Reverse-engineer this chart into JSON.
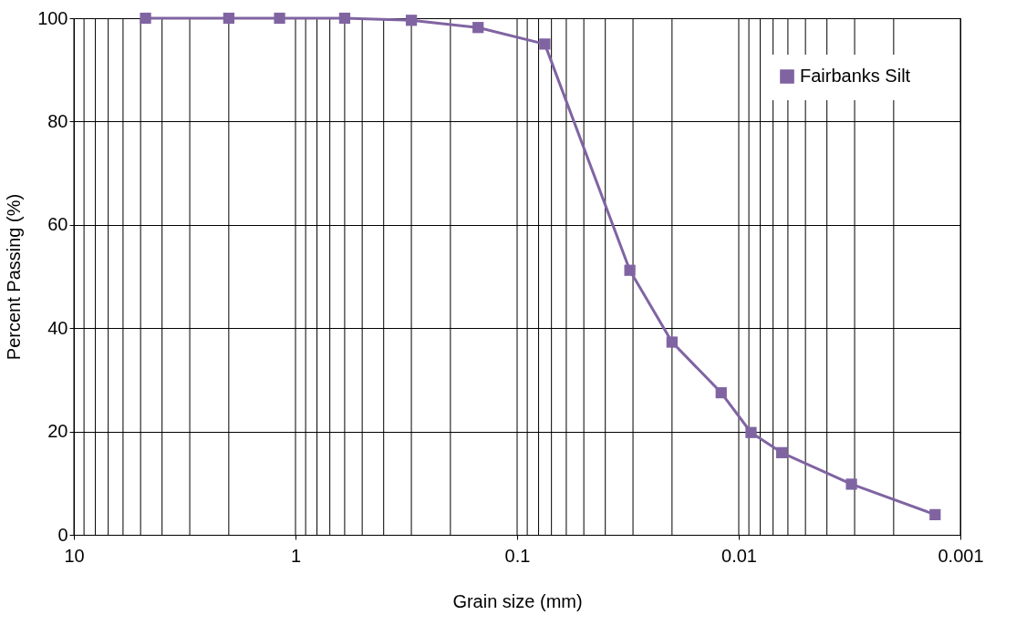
{
  "chart_data": {
    "type": "line",
    "xlabel": "Grain size (mm)",
    "ylabel": "Percent Passing (%)",
    "x": [
      4.75,
      2.0,
      1.18,
      0.6,
      0.3,
      0.15,
      0.075,
      0.031,
      0.02,
      0.012,
      0.0088,
      0.0064,
      0.0031,
      0.0013
    ],
    "series": [
      {
        "name": "Fairbanks Silt",
        "color": "#8064a2",
        "values": [
          100,
          100,
          100,
          100,
          99.6,
          98.2,
          95.0,
          51.2,
          37.3,
          27.5,
          19.8,
          15.9,
          9.8,
          3.9
        ]
      }
    ],
    "log": "x",
    "xlim": [
      10,
      0.001
    ],
    "xticks": [
      10,
      1,
      0.1,
      0.01,
      0.001
    ],
    "ylim": [
      0,
      100
    ],
    "yticks": [
      0,
      20,
      40,
      60,
      80,
      100
    ],
    "grid": true,
    "legend": "top right",
    "marker": "square",
    "line_style": "solid"
  }
}
